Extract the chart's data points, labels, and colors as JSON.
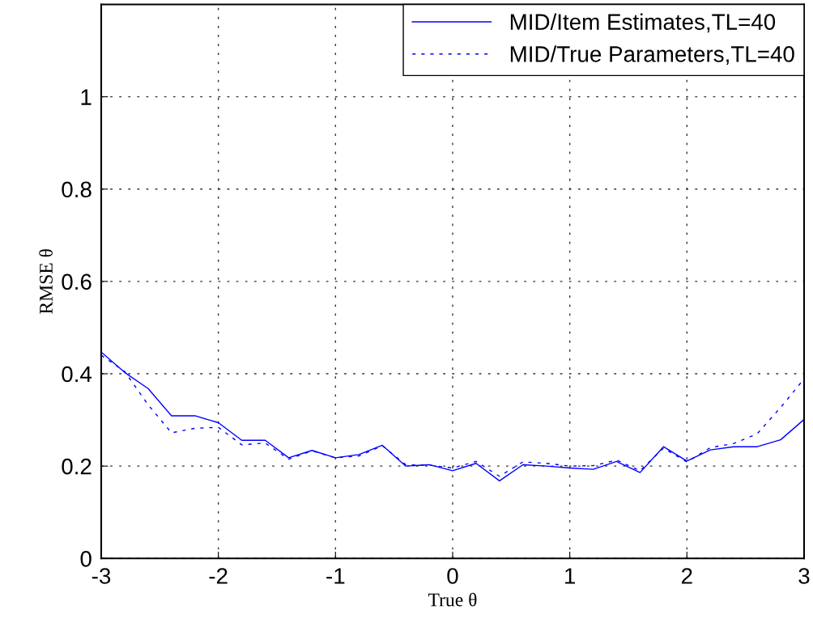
{
  "chart_data": {
    "type": "line",
    "xlabel": "True θ",
    "ylabel": "RMSE θ",
    "x": [
      -3,
      -2.8,
      -2.6,
      -2.4,
      -2.2,
      -2,
      -1.8,
      -1.6,
      -1.4,
      -1.2,
      -1,
      -0.8,
      -0.6,
      -0.4,
      -0.2,
      0,
      0.2,
      0.4,
      0.6,
      0.8,
      1,
      1.2,
      1.4,
      1.6,
      1.8,
      2,
      2.2,
      2.4,
      2.6,
      2.8,
      3
    ],
    "series": [
      {
        "name": "MID/Item Estimates,TL=40",
        "color": "#0000ff",
        "line_style": "solid",
        "values": [
          0.447,
          0.403,
          0.368,
          0.309,
          0.309,
          0.294,
          0.256,
          0.256,
          0.218,
          0.234,
          0.218,
          0.225,
          0.245,
          0.2,
          0.203,
          0.19,
          0.206,
          0.168,
          0.203,
          0.2,
          0.196,
          0.193,
          0.21,
          0.186,
          0.242,
          0.211,
          0.235,
          0.242,
          0.242,
          0.257,
          0.301
        ]
      },
      {
        "name": "MID/True Parameters,TL=40",
        "color": "#0000ff",
        "line_style": "dotted",
        "values": [
          0.44,
          0.405,
          0.333,
          0.272,
          0.282,
          0.284,
          0.246,
          0.25,
          0.215,
          0.233,
          0.218,
          0.222,
          0.244,
          0.203,
          0.202,
          0.196,
          0.21,
          0.178,
          0.209,
          0.206,
          0.2,
          0.201,
          0.213,
          0.19,
          0.239,
          0.209,
          0.24,
          0.249,
          0.27,
          0.327,
          0.389
        ]
      }
    ],
    "xlim": [
      -3,
      3
    ],
    "xticks": [
      -3,
      -2,
      -1,
      0,
      1,
      2,
      3
    ],
    "ylim": [
      0,
      1.2
    ],
    "yticks": [
      0,
      0.2,
      0.4,
      0.6,
      0.8,
      1
    ],
    "grid": true,
    "legend": "top right"
  }
}
